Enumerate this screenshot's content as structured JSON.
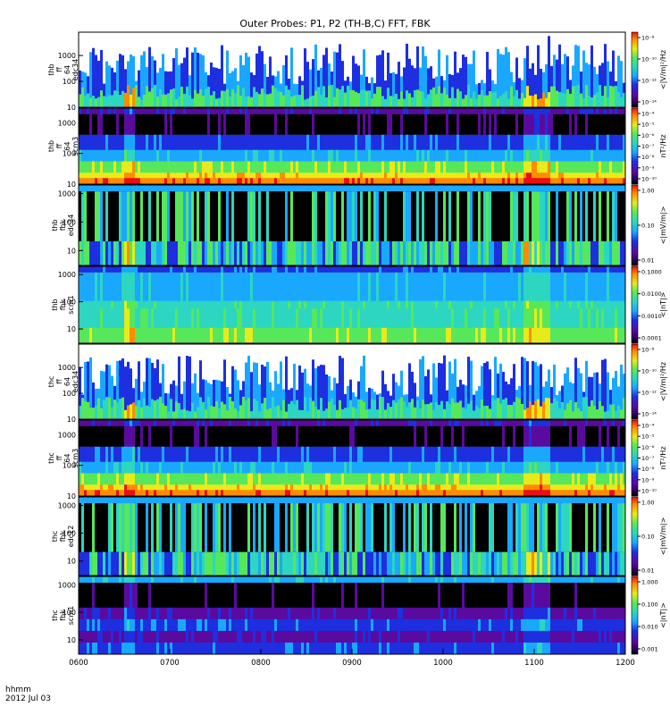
{
  "chart_data": {
    "type": "heatmap",
    "title": "Outer Probes: P1, P2 (TH-B,C) FFT, FBK",
    "x_corner_label": "hhmm",
    "date_label": "2012 Jul 03",
    "x_ticks": [
      "0600",
      "0700",
      "0800",
      "0900",
      "1000",
      "1100",
      "1200"
    ],
    "colormap": "rainbow",
    "panels": [
      {
        "name": "thb ff 64 edc34",
        "ylabel": [
          "thb",
          "ff",
          "64",
          "edc34"
        ],
        "y_ticks": [
          "10",
          "100",
          "1000"
        ],
        "ylim": [
          10,
          8000
        ],
        "log_y": true,
        "cbar_label": "<|V/m|²/Hz",
        "cbar_ticks": [
          "10⁻⁸",
          "10⁻¹⁰",
          "10⁻¹²",
          "10⁻¹⁴"
        ]
      },
      {
        "name": "thb ff 64 scm3",
        "ylabel": [
          "thb",
          "ff",
          "64",
          "scm3"
        ],
        "y_ticks": [
          "10",
          "100",
          "1000"
        ],
        "ylim": [
          10,
          3000
        ],
        "log_y": true,
        "cbar_label": "nT²/Hz",
        "cbar_ticks": [
          "10⁻⁴",
          "10⁻⁵",
          "10⁻⁶",
          "10⁻⁷",
          "10⁻⁸",
          "10⁻⁹",
          "10⁻¹⁰"
        ]
      },
      {
        "name": "thb fbk edc34",
        "ylabel": [
          "thb",
          "fbk",
          "edc34"
        ],
        "y_ticks": [
          "10",
          "100",
          "1000"
        ],
        "ylim": [
          3,
          2000
        ],
        "log_y": true,
        "cbar_label": "<|mV/m|>",
        "cbar_ticks": [
          "1.00",
          "0.10",
          "0.01"
        ]
      },
      {
        "name": "thb fbk scm1",
        "ylabel": [
          "thb",
          "fbk",
          "scm1"
        ],
        "y_ticks": [
          "10",
          "100",
          "1000"
        ],
        "ylim": [
          3,
          2000
        ],
        "log_y": true,
        "cbar_label": "<|nT|>",
        "cbar_ticks": [
          "0.1000",
          "0.0100",
          "0.0010",
          "0.0001"
        ]
      },
      {
        "name": "thc ff 64 edc34",
        "ylabel": [
          "thc",
          "ff",
          "64",
          "edc34"
        ],
        "y_ticks": [
          "10",
          "100",
          "1000"
        ],
        "ylim": [
          10,
          8000
        ],
        "log_y": true,
        "cbar_label": "<|V/m|²/Hz",
        "cbar_ticks": [
          "10⁻⁸",
          "10⁻¹⁰",
          "10⁻¹²",
          "10⁻¹⁴"
        ]
      },
      {
        "name": "thc ff 64 scm3",
        "ylabel": [
          "thc",
          "ff",
          "64",
          "scm3"
        ],
        "y_ticks": [
          "10",
          "100",
          "1000"
        ],
        "ylim": [
          10,
          3000
        ],
        "log_y": true,
        "cbar_label": "nT²/Hz",
        "cbar_ticks": [
          "10⁻⁴",
          "10⁻⁵",
          "10⁻⁶",
          "10⁻⁷",
          "10⁻⁸",
          "10⁻⁹",
          "10⁻¹⁰"
        ]
      },
      {
        "name": "thc fbk edc12",
        "ylabel": [
          "thc",
          "fbk",
          "edc12"
        ],
        "y_ticks": [
          "10",
          "100",
          "1000"
        ],
        "ylim": [
          3,
          2000
        ],
        "log_y": true,
        "cbar_label": "<|mV/m|>",
        "cbar_ticks": [
          "1.00",
          "0.10",
          "0.01"
        ]
      },
      {
        "name": "thc fbk scm1",
        "ylabel": [
          "thc",
          "fbk",
          "scm1"
        ],
        "y_ticks": [
          "10",
          "100",
          "1000"
        ],
        "ylim": [
          3,
          2000
        ],
        "log_y": true,
        "cbar_label": "<|nT|>",
        "cbar_ticks": [
          "1.000",
          "0.100",
          "0.010",
          "0.001"
        ]
      }
    ],
    "colors": {
      "black": "#000000",
      "purple": "#5a0a9e",
      "blue": "#1e2fe0",
      "lightblue": "#1aa8ff",
      "cyan": "#2cd6c0",
      "green": "#56e85a",
      "yellow": "#e8ea1c",
      "orange": "#ff8c00",
      "red": "#e81010"
    }
  }
}
